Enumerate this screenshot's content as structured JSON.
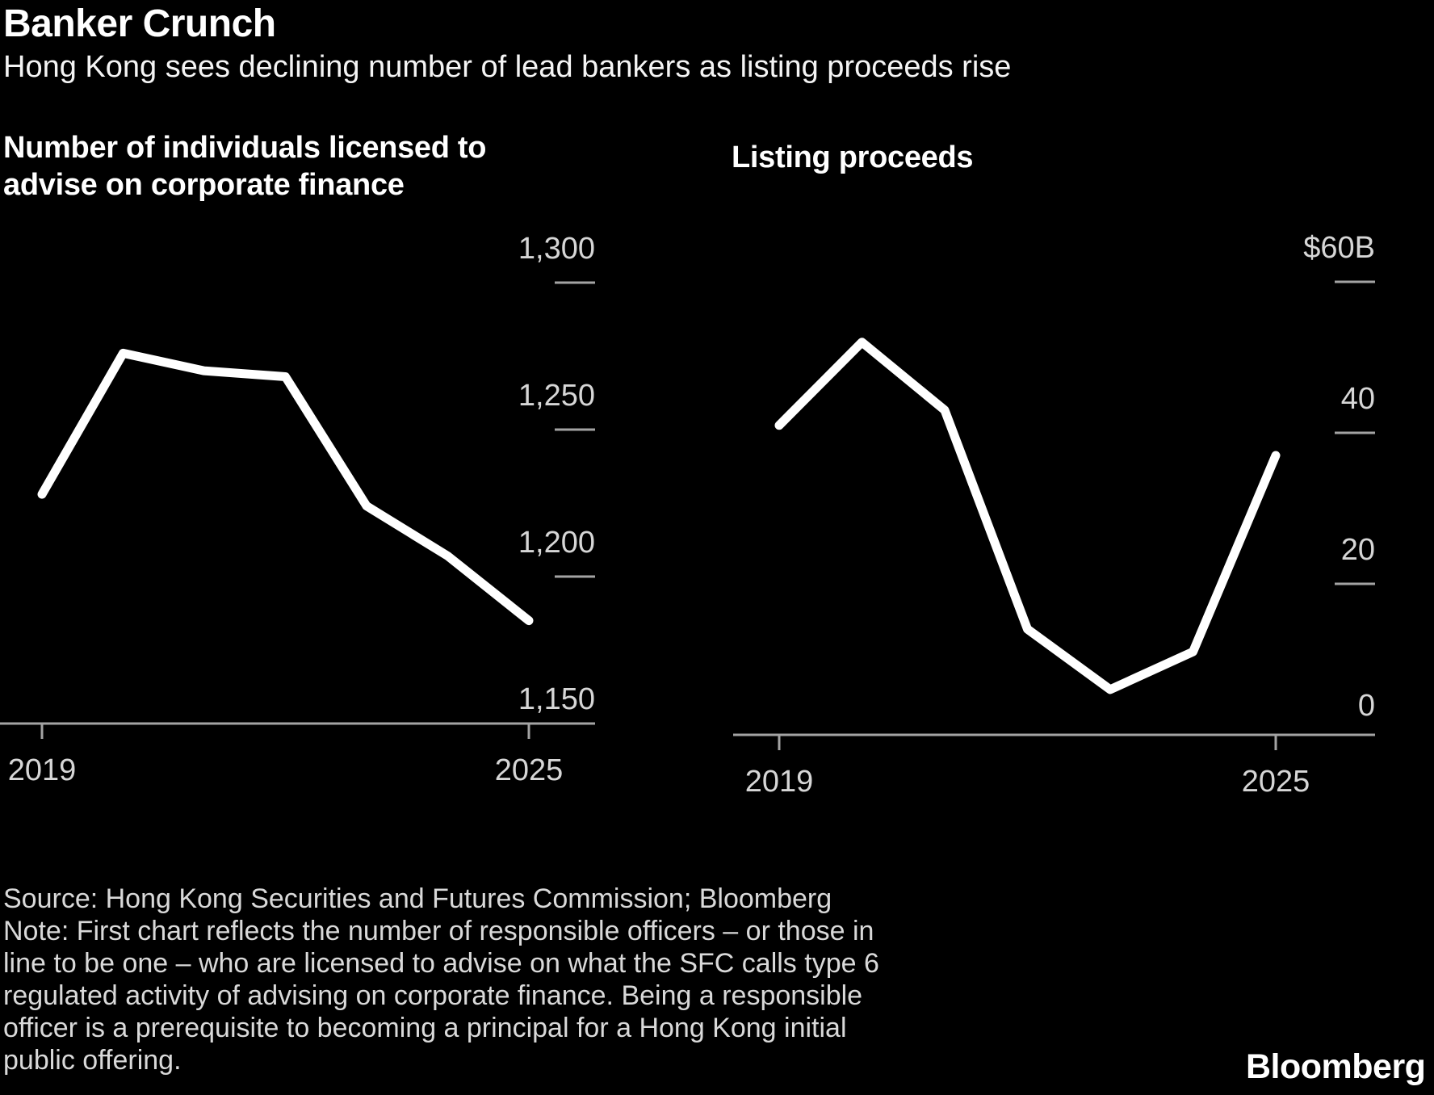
{
  "header": {
    "title": "Banker Crunch",
    "subtitle": "Hong Kong sees declining number of lead bankers as listing proceeds rise"
  },
  "charts": [
    {
      "title_lines": [
        "Number of individuals licensed to",
        "advise on corporate finance"
      ]
    },
    {
      "title_lines": [
        "Listing proceeds"
      ]
    }
  ],
  "chart_data": [
    {
      "type": "line",
      "title": "Number of individuals licensed to advise on corporate finance",
      "x": [
        2019,
        2020,
        2021,
        2022,
        2023,
        2024,
        2025
      ],
      "values": [
        1228,
        1276,
        1270,
        1268,
        1224,
        1207,
        1185
      ],
      "ylim": [
        1150,
        1316
      ],
      "yticks": [
        {
          "value": 1150,
          "label": "1,150"
        },
        {
          "value": 1200,
          "label": "1,200"
        },
        {
          "value": 1250,
          "label": "1,250"
        },
        {
          "value": 1300,
          "label": "1,300"
        }
      ],
      "xticks": [
        {
          "value": 2019,
          "label": "2019"
        },
        {
          "value": 2025,
          "label": "2025"
        }
      ],
      "grid": false,
      "legend": "none",
      "axis_label_side": "right"
    },
    {
      "type": "line",
      "title": "Listing proceeds",
      "x": [
        2019,
        2020,
        2021,
        2022,
        2023,
        2024,
        2025
      ],
      "values": [
        41,
        52,
        43,
        14,
        6,
        11,
        37
      ],
      "ylim": [
        0,
        62
      ],
      "yticks": [
        {
          "value": 0,
          "label": "0"
        },
        {
          "value": 20,
          "label": "20"
        },
        {
          "value": 40,
          "label": "40"
        },
        {
          "value": 60,
          "label": "$60B"
        }
      ],
      "xticks": [
        {
          "value": 2019,
          "label": "2019"
        },
        {
          "value": 2025,
          "label": "2025"
        }
      ],
      "grid": false,
      "legend": "none",
      "axis_label_side": "right"
    }
  ],
  "footer": {
    "lines": [
      "Source: Hong Kong Securities and Futures Commission; Bloomberg",
      "Note: First chart reflects the number of responsible officers – or those in",
      "line to be one – who are licensed to advise on what the SFC calls type 6",
      "regulated activity of advising on corporate finance. Being a responsible",
      "officer is a prerequisite to becoming a principal for a Hong Kong initial",
      "public offering."
    ]
  },
  "logo": "Bloomberg",
  "colors": {
    "background": "#000000",
    "series_line": "#ffffff",
    "axis": "#a3a3a3",
    "tick_label": "#d6d6d6",
    "title_text": "#ffffff",
    "footer_text": "#d9d9d9"
  }
}
